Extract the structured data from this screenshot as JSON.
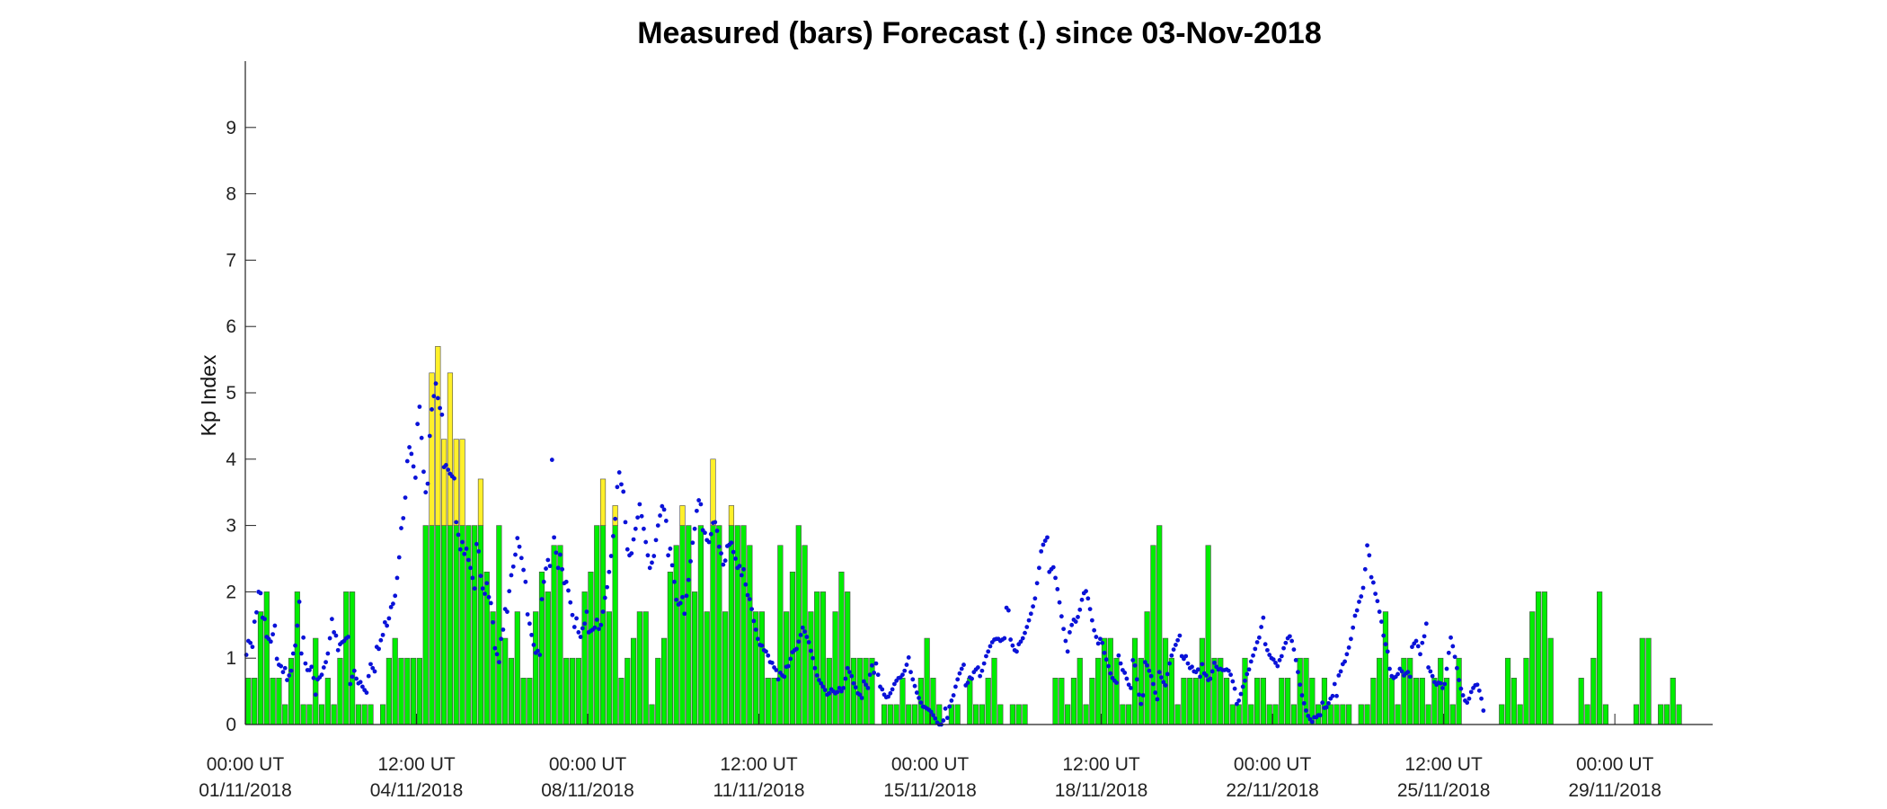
{
  "chart_data": {
    "type": "bar",
    "title": "Measured (bars) Forecast (.) since 03-Nov-2018",
    "xlabel": "",
    "ylabel": "Kp Index",
    "ylim": [
      0,
      10
    ],
    "xlim_days": [
      0,
      30
    ],
    "yticks": [
      0,
      1,
      2,
      3,
      4,
      5,
      6,
      7,
      8,
      9
    ],
    "xticks": [
      {
        "day": 0,
        "time": "00:00 UT",
        "date": "01/11/2018"
      },
      {
        "day": 3.5,
        "time": "12:00 UT",
        "date": "04/11/2018"
      },
      {
        "day": 7,
        "time": "00:00 UT",
        "date": "08/11/2018"
      },
      {
        "day": 10.5,
        "time": "12:00 UT",
        "date": "11/11/2018"
      },
      {
        "day": 14,
        "time": "00:00 UT",
        "date": "15/11/2018"
      },
      {
        "day": 17.5,
        "time": "12:00 UT",
        "date": "18/11/2018"
      },
      {
        "day": 21,
        "time": "00:00 UT",
        "date": "22/11/2018"
      },
      {
        "day": 24.5,
        "time": "12:00 UT",
        "date": "25/11/2018"
      },
      {
        "day": 28,
        "time": "00:00 UT",
        "date": "29/11/2018"
      }
    ],
    "threshold": 3,
    "grid": false,
    "series": [
      {
        "kind": "bars",
        "interval_hours": 3,
        "values": [
          0.7,
          0.7,
          1.7,
          2.0,
          0.7,
          0.7,
          0.3,
          1.0,
          2.0,
          0.3,
          0.3,
          1.3,
          0.3,
          0.7,
          0.3,
          1.0,
          2.0,
          2.0,
          0.3,
          0.3,
          0.3,
          0,
          0.3,
          1.0,
          1.3,
          1.0,
          1.0,
          1.0,
          1.0,
          3.0,
          5.3,
          5.7,
          4.3,
          5.3,
          4.3,
          4.3,
          3.0,
          3.0,
          3.7,
          2.3,
          1.7,
          3.0,
          1.3,
          1.0,
          1.7,
          0.7,
          0.7,
          1.7,
          2.3,
          2.0,
          2.7,
          2.7,
          1.0,
          1.0,
          1.0,
          2.0,
          2.3,
          3.0,
          3.7,
          1.7,
          3.3,
          0.7,
          1.0,
          1.3,
          1.7,
          1.7,
          0.3,
          1.0,
          1.3,
          2.3,
          2.7,
          3.3,
          3.0,
          2.0,
          3.0,
          1.7,
          4.0,
          3.0,
          1.7,
          3.3,
          3.0,
          3.0,
          2.7,
          1.7,
          1.7,
          0.7,
          0.7,
          2.7,
          1.7,
          2.3,
          3.0,
          2.7,
          1.7,
          2.0,
          2.0,
          1.0,
          1.7,
          2.3,
          2.0,
          1.0,
          1.0,
          1.0,
          1.0,
          0,
          0.3,
          0.3,
          0.3,
          0.7,
          0.3,
          0.3,
          0.7,
          1.3,
          0.7,
          0.3,
          0,
          0.3,
          0.3,
          0,
          0.7,
          0.3,
          0.3,
          0.7,
          1.0,
          0.3,
          0,
          0.3,
          0.3,
          0.3,
          0,
          0,
          0,
          0,
          0.7,
          0.7,
          0.3,
          0.7,
          1.0,
          0.3,
          0.7,
          1.0,
          1.3,
          1.3,
          1.0,
          0.3,
          0.3,
          1.3,
          1.0,
          1.7,
          2.7,
          3.0,
          1.3,
          1.0,
          0.3,
          0.7,
          0.7,
          0.7,
          1.3,
          2.7,
          1.0,
          1.0,
          0.7,
          0.3,
          0.3,
          1.0,
          0.3,
          0.7,
          0.7,
          0.3,
          0.3,
          0.7,
          0.7,
          0.3,
          1.0,
          1.0,
          0.7,
          0.3,
          0.7,
          0.3,
          0.3,
          0.3,
          0.3,
          0,
          0.3,
          0.3,
          0.7,
          1.0,
          1.7,
          0.7,
          0.3,
          1.0,
          1.0,
          0.7,
          0.7,
          0.3,
          0.7,
          1.0,
          0.7,
          0.3,
          1.0,
          0,
          0,
          0,
          0,
          0,
          0,
          0.3,
          1.0,
          0.7,
          0.3,
          1.0,
          1.7,
          2.0,
          2.0,
          1.3,
          0,
          0,
          0,
          0,
          0.7,
          0.3,
          1.0,
          2.0,
          0.3,
          0,
          0,
          0,
          0,
          0.3,
          1.3,
          1.3,
          0,
          0.3,
          0.3,
          0.7,
          0.3
        ]
      },
      {
        "kind": "points",
        "interval_hours": 1,
        "values": [
          1.05,
          1.26,
          1.23,
          1.17,
          1.55,
          1.69,
          2.0,
          1.98,
          1.61,
          1.59,
          1.32,
          1.29,
          1.25,
          1.36,
          1.49,
          0.99,
          0.9,
          0.88,
          0.79,
          0.85,
          0.67,
          0.74,
          0.81,
          1.07,
          1.19,
          1.49,
          1.85,
          1.07,
          1.31,
          0.92,
          0.82,
          0.82,
          0.87,
          0.7,
          0.45,
          0.68,
          0.71,
          0.75,
          0.86,
          0.94,
          1.07,
          1.3,
          1.59,
          1.39,
          1.34,
          1.12,
          1.21,
          1.24,
          1.26,
          1.3,
          1.32,
          0.61,
          0.72,
          0.81,
          0.69,
          0.62,
          0.64,
          0.57,
          0.52,
          0.48,
          0.73,
          0.91,
          0.85,
          0.8,
          1.17,
          1.14,
          1.27,
          1.35,
          1.54,
          1.49,
          1.6,
          1.77,
          1.82,
          1.94,
          2.21,
          2.52,
          2.96,
          3.11,
          3.42,
          3.97,
          4.18,
          4.08,
          3.89,
          3.72,
          4.53,
          4.79,
          4.32,
          3.81,
          3.5,
          3.63,
          4.35,
          4.75,
          4.95,
          5.14,
          4.92,
          4.77,
          4.67,
          3.88,
          3.91,
          3.84,
          3.78,
          3.74,
          3.71,
          3.05,
          2.86,
          2.64,
          2.75,
          2.57,
          2.65,
          2.48,
          2.36,
          2.21,
          2.05,
          2.72,
          2.61,
          2.24,
          2.05,
          1.97,
          2.13,
          1.92,
          1.83,
          1.54,
          1.15,
          1.06,
          0.94,
          1.29,
          1.43,
          1.74,
          1.7,
          2.01,
          2.25,
          2.38,
          2.56,
          2.81,
          2.68,
          2.51,
          2.33,
          2.15,
          1.66,
          1.52,
          1.35,
          1.2,
          1.08,
          1.11,
          1.05,
          1.89,
          2.15,
          2.35,
          2.48,
          2.39,
          3.99,
          2.82,
          2.59,
          2.36,
          2.56,
          2.34,
          2.13,
          2.15,
          2.02,
          1.84,
          1.65,
          1.47,
          1.6,
          1.39,
          1.32,
          1.45,
          1.52,
          1.7,
          1.39,
          1.41,
          1.43,
          1.46,
          1.58,
          1.44,
          1.5,
          1.7,
          1.91,
          2.07,
          2.3,
          2.54,
          2.84,
          3.1,
          3.58,
          3.8,
          3.62,
          3.51,
          3.05,
          2.64,
          2.55,
          2.58,
          2.79,
          2.95,
          3.12,
          3.32,
          3.14,
          2.95,
          2.75,
          2.55,
          2.36,
          2.44,
          2.54,
          2.78,
          3.0,
          3.15,
          3.29,
          3.24,
          3.07,
          2.55,
          2.65,
          2.4,
          2.15,
          1.88,
          1.81,
          1.83,
          1.92,
          1.67,
          1.94,
          2.18,
          2.46,
          2.74,
          2.95,
          3.22,
          3.38,
          3.32,
          2.93,
          2.89,
          2.78,
          2.75,
          2.87,
          3.04,
          3.05,
          2.92,
          2.68,
          2.58,
          2.41,
          2.47,
          2.69,
          2.71,
          2.74,
          2.6,
          2.5,
          2.36,
          2.39,
          2.25,
          2.34,
          2.11,
          1.95,
          1.89,
          1.74,
          1.56,
          1.43,
          1.29,
          1.2,
          1.19,
          1.12,
          1.1,
          1.04,
          0.94,
          0.93,
          0.86,
          0.82,
          0.68,
          0.78,
          0.74,
          0.72,
          0.87,
          0.88,
          0.99,
          1.09,
          1.12,
          1.14,
          1.25,
          1.35,
          1.46,
          1.4,
          1.32,
          1.24,
          1.11,
          1.0,
          0.85,
          0.74,
          0.67,
          0.62,
          0.57,
          0.52,
          0.45,
          0.47,
          0.53,
          0.5,
          0.47,
          0.49,
          0.55,
          0.5,
          0.55,
          0.69,
          0.85,
          0.79,
          0.73,
          0.62,
          0.56,
          0.47,
          0.45,
          0.4,
          0.65,
          0.6,
          0.55,
          0.75,
          0.89,
          0.78,
          0.92,
          0.75,
          0.57,
          0.53,
          0.45,
          0.41,
          0.42,
          0.47,
          0.53,
          0.61,
          0.66,
          0.7,
          0.71,
          0.75,
          0.81,
          0.9,
          1.01,
          0.79,
          0.68,
          0.58,
          0.48,
          0.4,
          0.33,
          0.27,
          0.26,
          0.24,
          0.22,
          0.19,
          0.14,
          0.09,
          0.03,
          0.0,
          0.0,
          0.06,
          0.24,
          0.1,
          0.27,
          0.36,
          0.44,
          0.57,
          0.68,
          0.77,
          0.84,
          0.9,
          0.59,
          0.63,
          0.71,
          0.69,
          0.79,
          0.83,
          0.86,
          0.73,
          0.81,
          0.92,
          1.03,
          1.1,
          1.18,
          1.24,
          1.28,
          1.29,
          1.29,
          1.26,
          1.28,
          1.3,
          1.76,
          1.72,
          1.28,
          1.19,
          1.12,
          1.1,
          1.21,
          1.25,
          1.3,
          1.38,
          1.47,
          1.57,
          1.67,
          1.78,
          1.9,
          2.13,
          2.36,
          2.61,
          2.71,
          2.77,
          2.82,
          2.3,
          2.34,
          2.37,
          2.21,
          2.04,
          1.84,
          1.63,
          1.44,
          1.26,
          1.1,
          1.39,
          1.5,
          1.58,
          1.55,
          1.62,
          1.73,
          1.88,
          1.98,
          2.01,
          1.9,
          1.74,
          1.57,
          1.42,
          1.32,
          1.22,
          1.29,
          1.23,
          1.08,
          0.98,
          0.88,
          0.77,
          0.7,
          0.66,
          0.63,
          1.04,
          0.92,
          0.82,
          0.78,
          0.69,
          0.6,
          0.55,
          0.97,
          0.89,
          0.68,
          0.45,
          0.31,
          0.44,
          0.94,
          0.89,
          0.81,
          0.73,
          0.61,
          0.48,
          0.38,
          0.79,
          0.71,
          0.64,
          0.59,
          0.76,
          0.92,
          1.04,
          1.13,
          1.2,
          1.27,
          1.34,
          1.03,
          0.99,
          1.03,
          0.92,
          0.85,
          0.87,
          0.8,
          0.79,
          0.83,
          0.72,
          0.91,
          0.77,
          0.74,
          0.67,
          0.69,
          0.8,
          0.93,
          0.87,
          0.83,
          0.84,
          0.82,
          0.82,
          0.83,
          0.81,
          0.75,
          0.65,
          0.54,
          0.31,
          0.36,
          0.46,
          0.57,
          0.66,
          0.76,
          0.83,
          0.95,
          1.04,
          1.14,
          1.24,
          1.31,
          1.47,
          1.61,
          1.21,
          1.12,
          1.05,
          1.0,
          0.98,
          0.93,
          0.88,
          0.97,
          1.03,
          1.15,
          1.23,
          1.3,
          1.33,
          1.26,
          1.13,
          0.97,
          0.79,
          0.6,
          0.44,
          0.32,
          0.21,
          0.13,
          0.08,
          0.04,
          0.11,
          0.11,
          0.14,
          0.14,
          0.33,
          0.25,
          0.26,
          0.32,
          0.39,
          0.43,
          0.61,
          0.43,
          0.74,
          0.8,
          0.91,
          0.95,
          1.06,
          1.16,
          1.29,
          1.46,
          1.64,
          1.72,
          1.85,
          1.93,
          2.06,
          2.34,
          2.7,
          2.55,
          2.22,
          2.14,
          1.97,
          1.86,
          1.7,
          1.55,
          1.34,
          1.21,
          1.1,
          0.84,
          0.73,
          0.7,
          0.72,
          0.76,
          0.84,
          0.8,
          0.74,
          0.77,
          0.79,
          0.72,
          1.17,
          1.22,
          1.26,
          1.18,
          1.06,
          1.23,
          1.33,
          1.52,
          0.86,
          0.8,
          0.73,
          0.64,
          0.6,
          0.63,
          0.62,
          0.55,
          0.61,
          0.84,
          1.08,
          1.31,
          1.18,
          1.02,
          0.85,
          0.67,
          0.54,
          0.44,
          0.36,
          0.33,
          0.39,
          0.49,
          0.55,
          0.59,
          0.6,
          0.51,
          0.39,
          0.21
        ]
      }
    ]
  },
  "colors": {
    "bar_normal": "#00ee00",
    "bar_storm": "#fff02a",
    "bar_edge": "#4a4a4a",
    "forecast_dot": "#0a12d8",
    "axis": "#222222"
  }
}
